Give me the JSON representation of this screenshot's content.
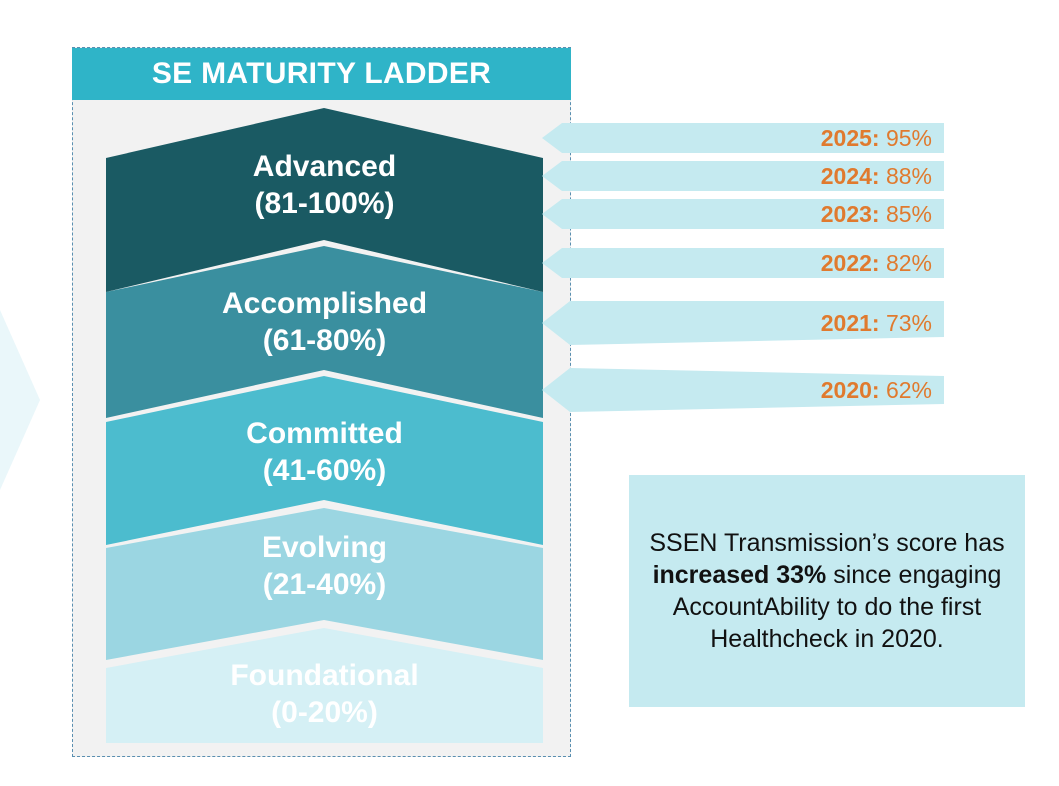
{
  "ladder": {
    "title": "SE MATURITY LADDER",
    "steps": [
      {
        "name": "Advanced",
        "range": "(81-100%)",
        "color": "#1a5a63"
      },
      {
        "name": "Accomplished",
        "range": "(61-80%)",
        "color": "#3a8f9f"
      },
      {
        "name": "Committed",
        "range": "(41-60%)",
        "color": "#4cbcce"
      },
      {
        "name": "Evolving",
        "range": "(21-40%)",
        "color": "#9bd6e2"
      },
      {
        "name": "Foundational",
        "range": "(0-20%)",
        "color": "#d5f0f5"
      }
    ]
  },
  "scores": [
    {
      "year": "2025:",
      "value": "95%"
    },
    {
      "year": "2024:",
      "value": "88%"
    },
    {
      "year": "2023:",
      "value": "85%"
    },
    {
      "year": "2022:",
      "value": "82%"
    },
    {
      "year": "2021:",
      "value": "73%"
    },
    {
      "year": "2020:",
      "value": "62%"
    }
  ],
  "callout": {
    "pre": "SSEN Transmission’s score has ",
    "bold": "increased 33%",
    "post": " since engaging AccountAbility to do the first Healthcheck in 2020."
  },
  "colors": {
    "header": "#2fb4c8",
    "arrow_fill": "#c5eaf0",
    "score_text": "#e07a2e"
  }
}
